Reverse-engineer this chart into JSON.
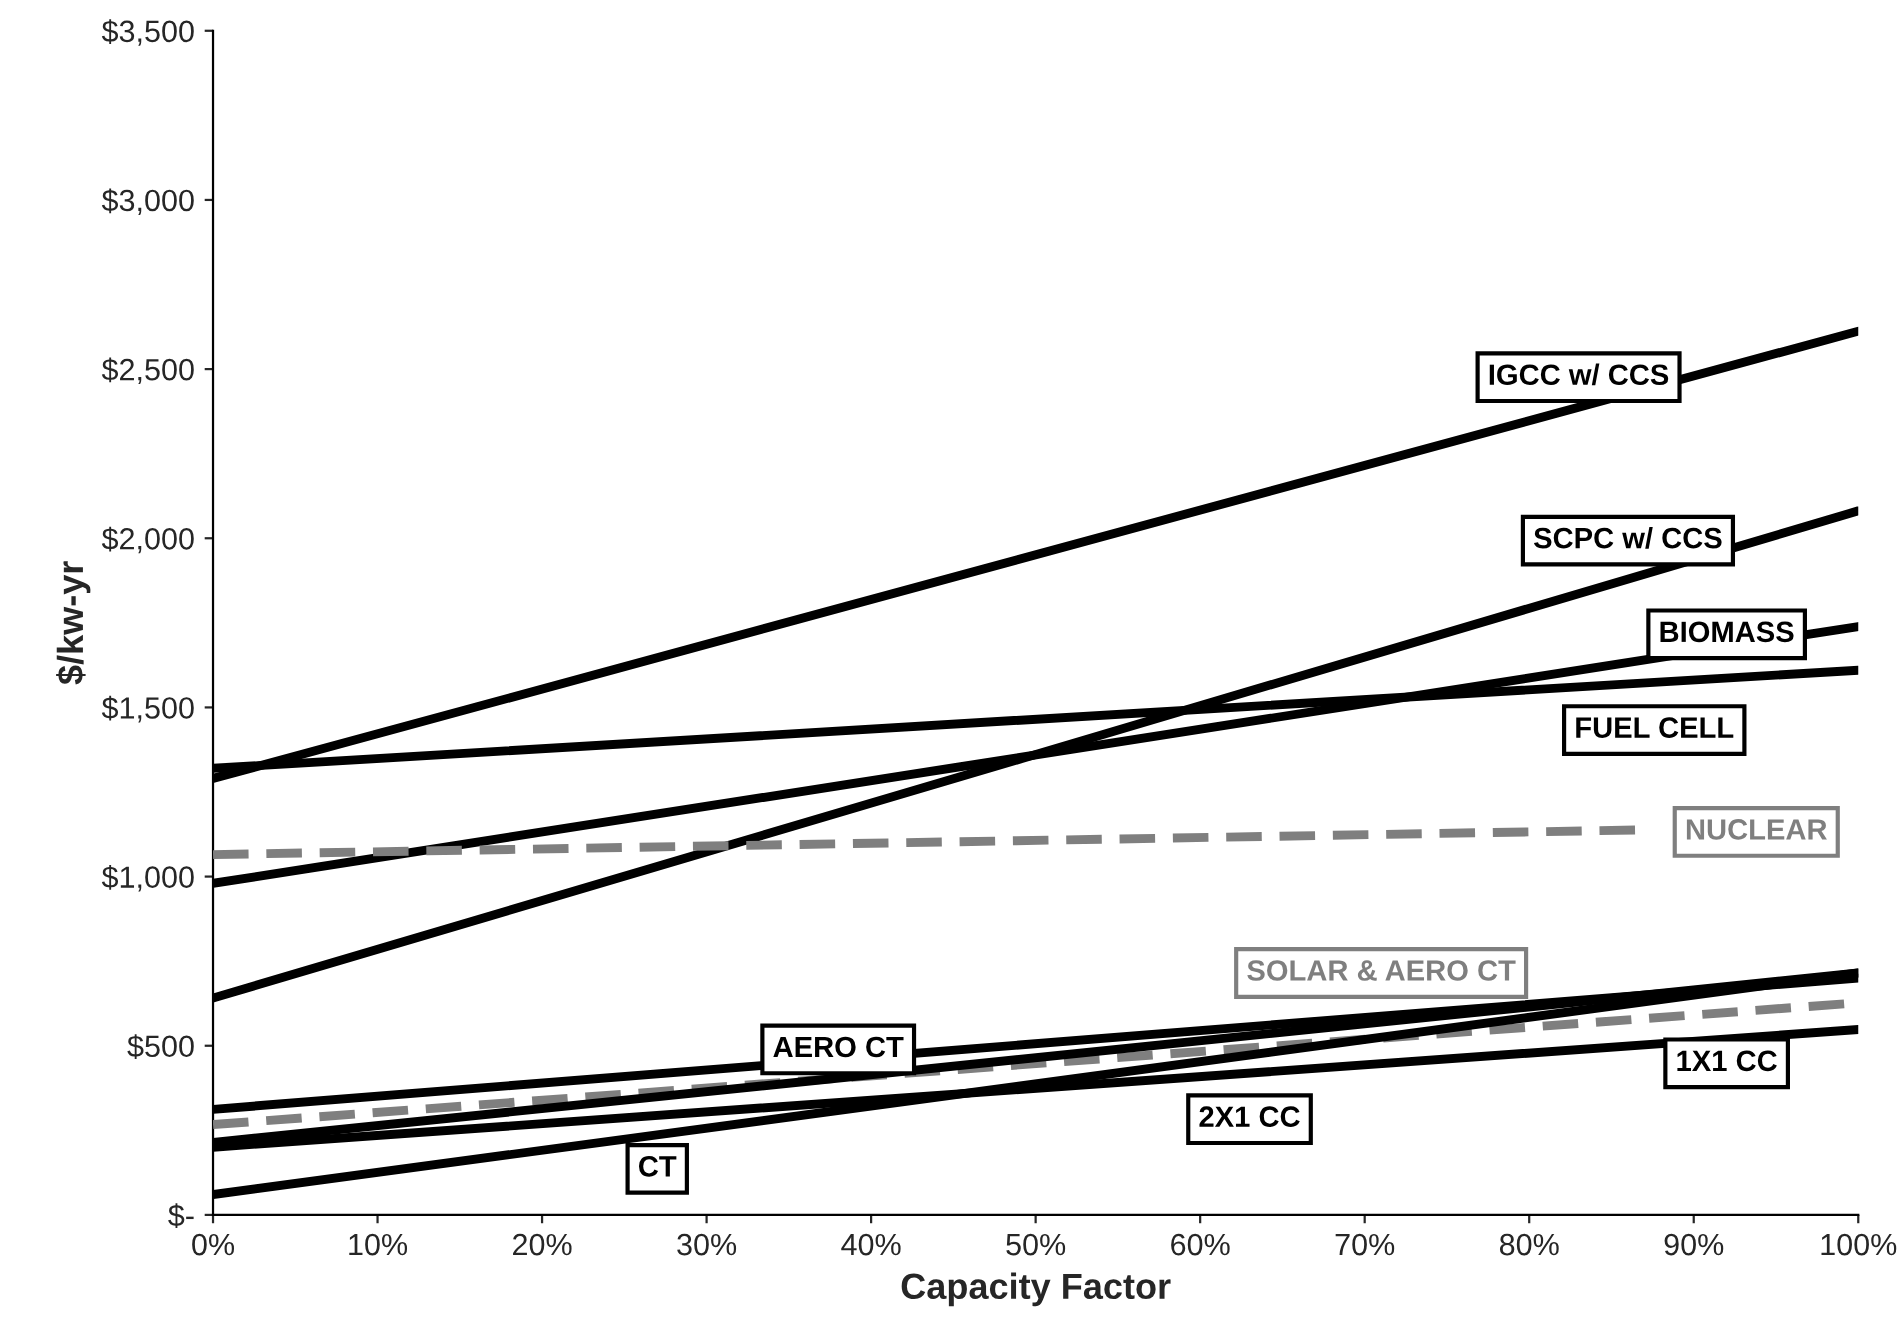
{
  "chart_data": {
    "type": "line",
    "xlabel": "Capacity Factor",
    "ylabel": "$/kw-yr",
    "x": [
      0,
      100
    ],
    "series": [
      {
        "name": "IGCC w/ CCS",
        "color": "#000000",
        "values": [
          1290,
          2612
        ]
      },
      {
        "name": "SCPC w/ CCS",
        "color": "#000000",
        "values": [
          641,
          2081
        ]
      },
      {
        "name": "BIOMASS",
        "color": "#000000",
        "values": [
          980,
          1739
        ]
      },
      {
        "name": "FUEL CELL",
        "color": "#000000",
        "values": [
          1320,
          1610
        ]
      },
      {
        "name": "NUCLEAR",
        "color": "#7f7f7f",
        "line_style": "dashed",
        "x": [
          0,
          87
        ],
        "values": [
          1065,
          1138
        ]
      },
      {
        "name": "SOLAR & AERO CT",
        "color": "#7f7f7f",
        "line_style": "dashed",
        "values": [
          267,
          627
        ]
      },
      {
        "name": "AERO CT",
        "color": "#000000",
        "values": [
          312,
          700
        ]
      },
      {
        "name": "2X1 CC",
        "color": "#000000",
        "values": [
          214,
          715
        ]
      },
      {
        "name": "1X1 CC",
        "color": "#000000",
        "values": [
          200,
          548
        ]
      },
      {
        "name": "CT",
        "color": "#000000",
        "values": [
          60,
          715
        ]
      }
    ],
    "xlim": [
      0,
      100
    ],
    "ylim": [
      0,
      3500
    ],
    "xticks": [
      {
        "value": 0,
        "label": "0%"
      },
      {
        "value": 10,
        "label": "10%"
      },
      {
        "value": 20,
        "label": "20%"
      },
      {
        "value": 30,
        "label": "30%"
      },
      {
        "value": 40,
        "label": "40%"
      },
      {
        "value": 50,
        "label": "50%"
      },
      {
        "value": 60,
        "label": "60%"
      },
      {
        "value": 70,
        "label": "70%"
      },
      {
        "value": 80,
        "label": "80%"
      },
      {
        "value": 90,
        "label": "90%"
      },
      {
        "value": 100,
        "label": "100%"
      }
    ],
    "yticks": [
      {
        "value": 0,
        "label": "$-"
      },
      {
        "value": 500,
        "label": "$500"
      },
      {
        "value": 1000,
        "label": "$1,000"
      },
      {
        "value": 1500,
        "label": "$1,500"
      },
      {
        "value": 2000,
        "label": "$2,000"
      },
      {
        "value": 2500,
        "label": "$2,500"
      },
      {
        "value": 3000,
        "label": "$3,000"
      },
      {
        "value": 3500,
        "label": "$3,500"
      }
    ],
    "grid": false,
    "legend": false,
    "marker": "none",
    "line_style": "solid"
  }
}
